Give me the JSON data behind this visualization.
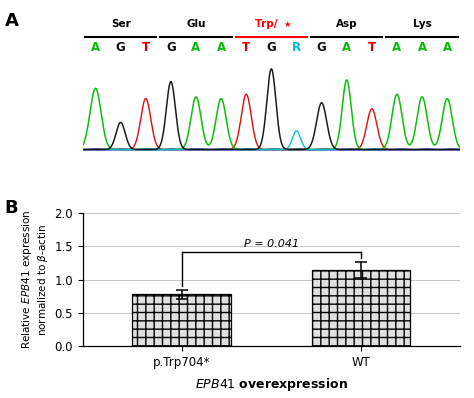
{
  "panel_A_label": "A",
  "panel_B_label": "B",
  "amino_acids": [
    "Ser",
    "Glu",
    "Trp/ *",
    "Asp",
    "Lys"
  ],
  "aa_colors": [
    "black",
    "black",
    "red",
    "black",
    "black"
  ],
  "aa_ranges": [
    [
      0,
      2
    ],
    [
      3,
      5
    ],
    [
      6,
      8
    ],
    [
      9,
      11
    ],
    [
      12,
      14
    ]
  ],
  "bases": [
    "A",
    "G",
    "T",
    "G",
    "A",
    "A",
    "T",
    "G",
    "R",
    "G",
    "A",
    "T",
    "A",
    "A",
    "A"
  ],
  "base_colors": [
    "green",
    "black",
    "red",
    "black",
    "green",
    "green",
    "red",
    "black",
    "cyan",
    "black",
    "green",
    "red",
    "green",
    "green",
    "green"
  ],
  "peak_heights": [
    0.72,
    0.32,
    0.6,
    0.8,
    0.62,
    0.6,
    0.65,
    0.95,
    0.22,
    0.55,
    0.82,
    0.48,
    0.65,
    0.62,
    0.6
  ],
  "peak_widths": [
    0.22,
    0.18,
    0.2,
    0.18,
    0.2,
    0.2,
    0.2,
    0.18,
    0.16,
    0.2,
    0.18,
    0.2,
    0.2,
    0.2,
    0.2
  ],
  "bar_values": [
    0.78,
    1.15
  ],
  "bar_errors": [
    0.07,
    0.12
  ],
  "bar_labels": [
    "p.Trp704*",
    "WT"
  ],
  "bar_color": "#e0e0e0",
  "bar_hatch": "++",
  "xlabel": "EPB41 overexpression",
  "ylim": [
    0.0,
    2.0
  ],
  "yticks": [
    0.0,
    0.5,
    1.0,
    1.5,
    2.0
  ],
  "p_value_text": "P = 0.041",
  "chromatogram_bg": "#d8eaf8",
  "bg_color": "white"
}
